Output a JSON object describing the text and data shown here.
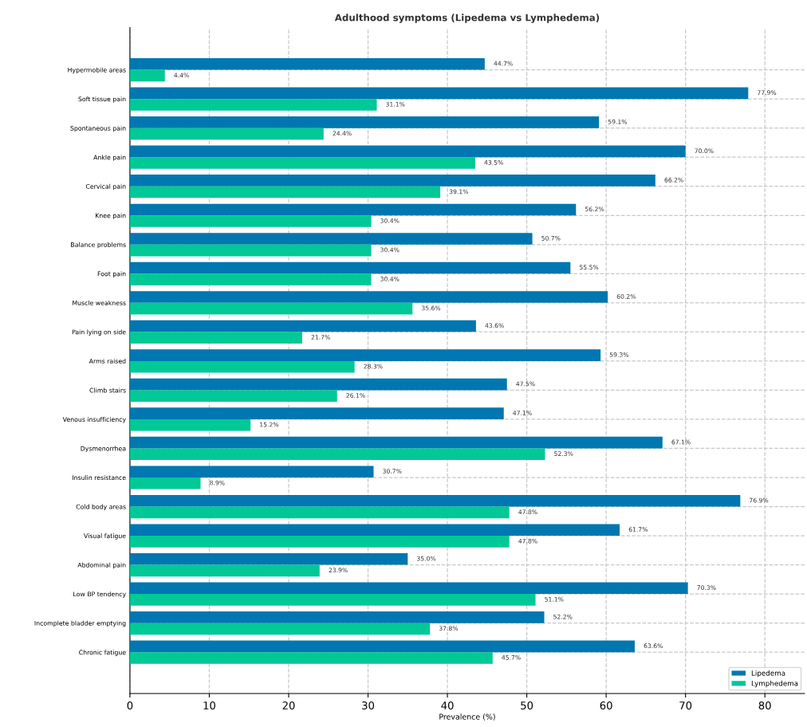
{
  "chart_data": {
    "type": "bar",
    "orientation": "horizontal",
    "title": "Adulthood symptoms (Lipedema vs Lymphedema)",
    "xlabel": "Prevalence (%)",
    "categories": [
      "Hypermobile areas",
      "Soft tissue pain",
      "Spontaneous pain",
      "Ankle pain",
      "Cervical pain",
      "Knee pain",
      "Balance problems",
      "Foot pain",
      "Muscle weakness",
      "Pain lying on side",
      "Arms raised",
      "Climb stairs",
      "Venous insufficiency",
      "Dysmenorrhea",
      "Insulin resistance",
      "Cold body areas",
      "Visual fatigue",
      "Abdominal pain",
      "Low BP tendency",
      "Incomplete bladder emptying",
      "Chronic fatigue"
    ],
    "series": [
      {
        "name": "Lipedema",
        "color": "#0077b0",
        "values": [
          44.7,
          77.9,
          59.1,
          70.0,
          66.2,
          56.2,
          50.7,
          55.5,
          60.2,
          43.6,
          59.3,
          47.5,
          47.1,
          67.1,
          30.7,
          76.9,
          61.7,
          35.0,
          70.3,
          52.2,
          63.6
        ],
        "value_labels": [
          "44.7%",
          "77.9%",
          "59.1%",
          "70.0%",
          "66.2%",
          "56.2%",
          "50.7%",
          "55.5%",
          "60.2%",
          "43.6%",
          "59.3%",
          "47.5%",
          "47.1%",
          "67.1%",
          "30.7%",
          "76.9%",
          "61.7%",
          "35.0%",
          "70.3%",
          "52.2%",
          "63.6%"
        ]
      },
      {
        "name": "Lymphedema",
        "color": "#00c896",
        "values": [
          4.4,
          31.1,
          24.4,
          43.5,
          39.1,
          30.4,
          30.4,
          30.4,
          35.6,
          21.7,
          28.3,
          26.1,
          15.2,
          52.3,
          8.9,
          47.8,
          47.8,
          23.9,
          51.1,
          37.8,
          45.7
        ],
        "value_labels": [
          "4.4%",
          "31.1%",
          "24.4%",
          "43.5%",
          "39.1%",
          "30.4%",
          "30.4%",
          "30.4%",
          "35.6%",
          "21.7%",
          "28.3%",
          "26.1%",
          "15.2%",
          "52.3%",
          "8.9%",
          "47.8%",
          "47.8%",
          "23.9%",
          "51.1%",
          "37.8%",
          "45.7%"
        ]
      }
    ],
    "xlim": [
      0,
      85
    ],
    "xticks": [
      0,
      10,
      20,
      30,
      40,
      50,
      60,
      70,
      80
    ],
    "grid": true,
    "legend": "bottom right"
  }
}
